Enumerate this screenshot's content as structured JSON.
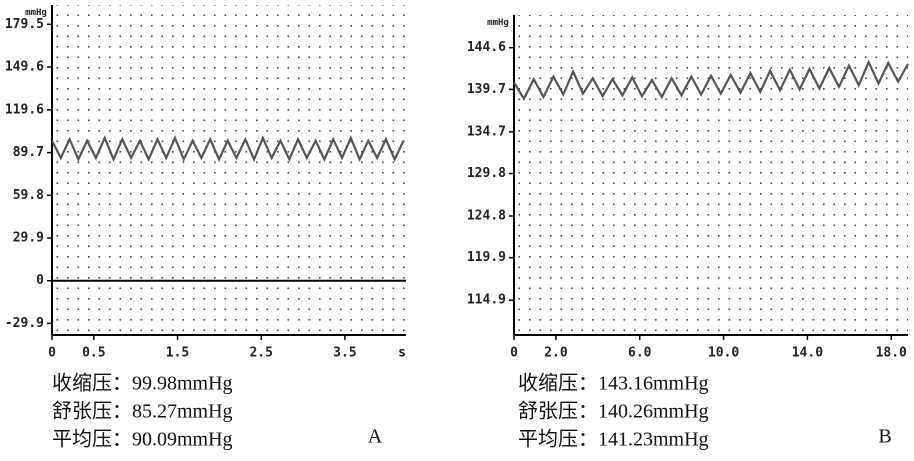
{
  "chart_data": [
    {
      "type": "line",
      "y_unit": "mmHg",
      "x_unit": "s",
      "grid": true,
      "zero_line": true,
      "xlim": [
        0,
        4.23
      ],
      "ylim": [
        -38,
        193
      ],
      "xticks": [
        0,
        0.5,
        1.5,
        2.5,
        3.5
      ],
      "yticks": [
        -29.9,
        0,
        29.9,
        59.8,
        89.7,
        119.6,
        149.6,
        179.5
      ],
      "series": [
        {
          "color": "#555555",
          "x": [
            0,
            0.105,
            0.21,
            0.315,
            0.42,
            0.525,
            0.63,
            0.735,
            0.84,
            0.945,
            1.05,
            1.155,
            1.26,
            1.365,
            1.47,
            1.575,
            1.68,
            1.785,
            1.89,
            1.995,
            2.1,
            2.205,
            2.31,
            2.415,
            2.52,
            2.625,
            2.73,
            2.835,
            2.94,
            3.045,
            3.15,
            3.255,
            3.36,
            3.465,
            3.57,
            3.675,
            3.78,
            3.885,
            3.99,
            4.095,
            4.2
          ],
          "values": [
            98,
            86,
            99,
            85,
            98,
            86,
            100,
            85,
            99,
            86,
            98,
            85,
            99,
            86,
            100,
            85,
            98,
            86,
            99,
            85,
            98,
            86,
            99,
            85,
            100,
            86,
            98,
            85,
            99,
            86,
            98,
            85,
            99,
            86,
            100,
            85,
            98,
            86,
            99,
            85,
            98
          ]
        }
      ],
      "stats": [
        "收缩压：99.98mmHg",
        "舒张压：85.27mmHg",
        "平均压：90.09mmHg"
      ],
      "panel_label": "A"
    },
    {
      "type": "line",
      "y_unit": "mmHg",
      "grid": true,
      "zero_line": false,
      "xlim": [
        0,
        18.8
      ],
      "ylim": [
        110.8,
        148.45
      ],
      "xticks": [
        0,
        {
          "value": 2,
          "label": "2.0"
        },
        {
          "value": 6,
          "label": "6.0"
        },
        {
          "value": 10,
          "label": "10.0"
        },
        {
          "value": 14,
          "label": "14.0"
        },
        {
          "value": 18,
          "label": "18.0"
        }
      ],
      "yticks": [
        114.9,
        119.9,
        124.8,
        129.8,
        134.7,
        139.7,
        144.6
      ],
      "series": [
        {
          "color": "#555555",
          "x": [
            0,
            0.47,
            0.94,
            1.41,
            1.88,
            2.35,
            2.82,
            3.29,
            3.76,
            4.23,
            4.7,
            5.17,
            5.64,
            6.11,
            6.58,
            7.05,
            7.52,
            7.99,
            8.46,
            8.93,
            9.4,
            9.87,
            10.34,
            10.81,
            11.28,
            11.75,
            12.22,
            12.69,
            13.16,
            13.63,
            14.1,
            14.57,
            15.04,
            15.51,
            15.98,
            16.45,
            16.92,
            17.39,
            17.86,
            18.33,
            18.8
          ],
          "values": [
            140.5,
            138.6,
            140.9,
            138.8,
            141.2,
            139.1,
            141.8,
            139.2,
            141.0,
            138.9,
            140.9,
            139.0,
            141.1,
            138.9,
            140.8,
            138.8,
            141.0,
            139.0,
            141.2,
            139.1,
            141.3,
            139.2,
            141.4,
            139.3,
            141.6,
            139.4,
            141.9,
            139.6,
            142.0,
            139.7,
            142.1,
            139.8,
            142.2,
            140.0,
            142.5,
            140.2,
            142.9,
            140.4,
            142.8,
            140.6,
            142.7
          ]
        }
      ],
      "stats": [
        "收缩压：143.16mmHg",
        "舒张压：140.26mmHg",
        "平均压：141.23mmHg"
      ],
      "panel_label": "B"
    }
  ]
}
